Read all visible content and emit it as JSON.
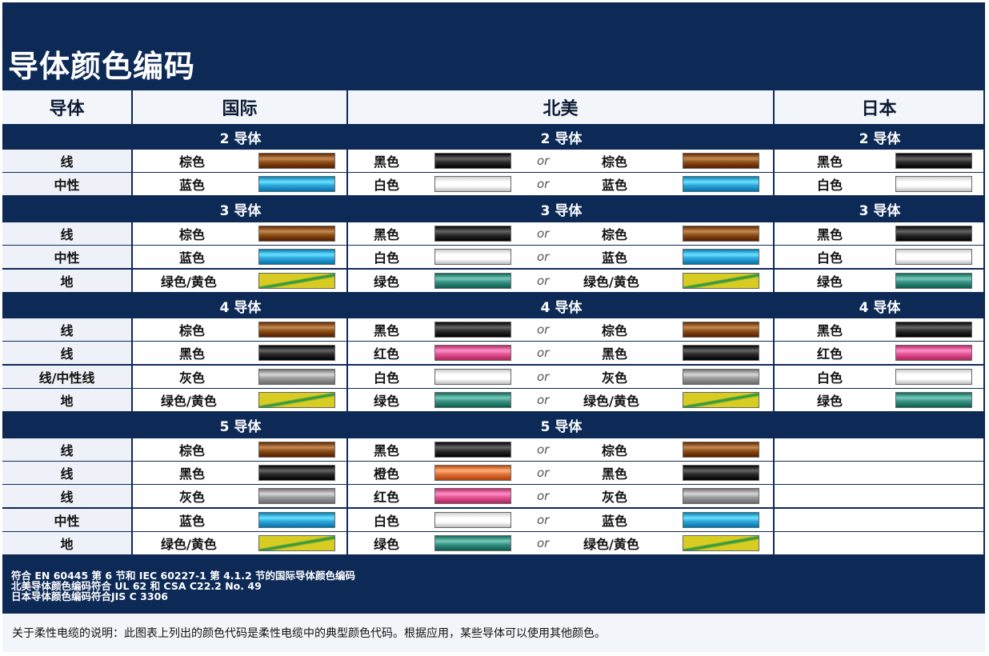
{
  "title": "导体颜色编码",
  "headers": {
    "conductor": "导体",
    "international": "国际",
    "north_america": "北美",
    "japan": "日本"
  },
  "or_label": "or",
  "colors": {
    "棕色": "#8a4e17",
    "蓝色": "#2fa6dc",
    "黑色": "#2a2a2a",
    "白色": "#f2f2f2",
    "灰色": "#9c9c9c",
    "绿色": "#3a9080",
    "绿色/黄色": "#cfc21e",
    "红色": "#e2548f",
    "橙色": "#e0733a"
  },
  "sections": [
    {
      "intl": "2 导体",
      "na": "2 导体",
      "jp": "2 导体",
      "rows": [
        {
          "cond": "线",
          "intl": "棕色",
          "na1": "黑色",
          "na2": "棕色",
          "jp": "黑色"
        },
        {
          "cond": "中性",
          "intl": "蓝色",
          "na1": "白色",
          "na2": "蓝色",
          "jp": "白色"
        }
      ]
    },
    {
      "intl": "3 导体",
      "na": "3 导体",
      "jp": "3 导体",
      "rows": [
        {
          "cond": "线",
          "intl": "棕色",
          "na1": "黑色",
          "na2": "棕色",
          "jp": "黑色"
        },
        {
          "cond": "中性",
          "intl": "蓝色",
          "na1": "白色",
          "na2": "蓝色",
          "jp": "白色"
        },
        {
          "cond": "地",
          "intl": "绿色/黄色",
          "na1": "绿色",
          "na2": "绿色/黄色",
          "jp": "绿色"
        }
      ]
    },
    {
      "intl": "4 导体",
      "na": "4 导体",
      "jp": "4 导体",
      "rows": [
        {
          "cond": "线",
          "intl": "棕色",
          "na1": "黑色",
          "na2": "棕色",
          "jp": "黑色"
        },
        {
          "cond": "线",
          "intl": "黑色",
          "na1": "红色",
          "na2": "黑色",
          "jp": "红色"
        },
        {
          "cond": "线/中性线",
          "intl": "灰色",
          "na1": "白色",
          "na2": "灰色",
          "jp": "白色"
        },
        {
          "cond": "地",
          "intl": "绿色/黄色",
          "na1": "绿色",
          "na2": "绿色/黄色",
          "jp": "绿色"
        }
      ]
    },
    {
      "intl": "5 导体",
      "na": "5 导体",
      "jp": "",
      "rows": [
        {
          "cond": "线",
          "intl": "棕色",
          "na1": "黑色",
          "na2": "棕色",
          "jp": ""
        },
        {
          "cond": "线",
          "intl": "黑色",
          "na1": "橙色",
          "na2": "黑色",
          "jp": ""
        },
        {
          "cond": "线",
          "intl": "灰色",
          "na1": "红色",
          "na2": "灰色",
          "jp": ""
        },
        {
          "cond": "中性",
          "intl": "蓝色",
          "na1": "白色",
          "na2": "蓝色",
          "jp": ""
        },
        {
          "cond": "地",
          "intl": "绿色/黄色",
          "na1": "绿色",
          "na2": "绿色/黄色",
          "jp": ""
        }
      ]
    }
  ],
  "standards": [
    "符合 EN 60445 第 6 节和 IEC 60227-1 第 4.1.2 节的国际导体颜色编码",
    "北美导体颜色编码符合 UL 62 和 CSA C22.2 No. 49",
    "日本导体颜色编码符合JIS C 3306"
  ],
  "flex_note": "关于柔性电缆的说明：此图表上列出的颜色代码是柔性电缆中的典型颜色代码。根据应用，某些导体可以使用其他颜色。"
}
